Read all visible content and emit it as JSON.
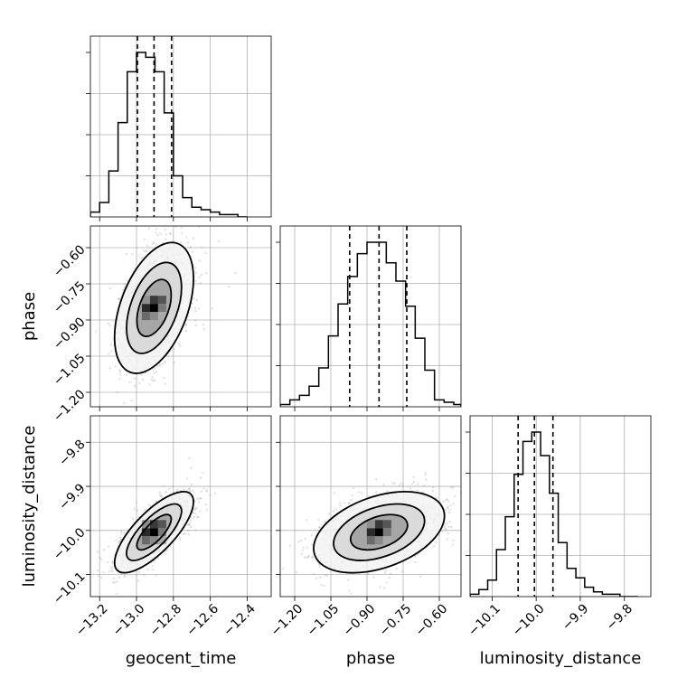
{
  "chart_data": {
    "type": "corner",
    "parameters": [
      "geocent_time",
      "phase",
      "luminosity_distance"
    ],
    "axis_labels": {
      "geocent_time": "geocent_time",
      "phase": "phase",
      "luminosity_distance": "luminosity_distance"
    },
    "ranges": {
      "geocent_time": [
        -13.25,
        -12.27
      ],
      "phase": [
        -1.26,
        -0.51
      ],
      "luminosity_distance": [
        -10.15,
        -9.74
      ]
    },
    "ticks": {
      "geocent_time": [
        -13.2,
        -13.0,
        -12.8,
        -12.6,
        -12.4
      ],
      "phase": [
        -1.2,
        -1.05,
        -0.9,
        -0.75,
        -0.6
      ],
      "luminosity_distance": [
        -10.1,
        -10.0,
        -9.9,
        -9.8
      ]
    },
    "tick_labels": {
      "geocent_time": [
        "−13.2",
        "−13.0",
        "−12.8",
        "−12.6",
        "−12.4"
      ],
      "phase": [
        "−1.20",
        "−1.05",
        "−0.90",
        "−0.75",
        "−0.60"
      ],
      "luminosity_distance": [
        "−10.1",
        "−10.0",
        "−9.9",
        "−9.8"
      ]
    },
    "quantiles": {
      "geocent_time": [
        -12.995,
        -12.905,
        -12.81
      ],
      "phase": [
        -0.972,
        -0.85,
        -0.735
      ],
      "luminosity_distance": [
        -10.041,
        -10.004,
        -9.962
      ]
    },
    "histograms": {
      "geocent_time": {
        "edges": [
          -13.25,
          -13.2,
          -13.15,
          -13.1,
          -13.05,
          -13.0,
          -12.95,
          -12.9,
          -12.85,
          -12.8,
          -12.75,
          -12.7,
          -12.65,
          -12.6,
          -12.55,
          -12.5,
          -12.45,
          -12.4
        ],
        "counts": [
          2,
          6,
          19,
          39,
          60,
          68,
          66,
          60,
          43,
          17,
          8,
          4,
          3,
          2,
          1,
          1,
          0
        ]
      },
      "phase": {
        "edges": [
          -1.26,
          -1.22,
          -1.18,
          -1.14,
          -1.1,
          -1.06,
          -1.02,
          -0.98,
          -0.94,
          -0.9,
          -0.86,
          -0.82,
          -0.78,
          -0.74,
          -0.7,
          -0.66,
          -0.62,
          -0.58,
          -0.54,
          -0.51
        ],
        "counts": [
          1,
          3,
          5,
          9,
          17,
          31,
          45,
          57,
          67,
          72,
          72,
          63,
          55,
          44,
          30,
          16,
          3,
          2,
          1
        ]
      },
      "luminosity_distance": {
        "edges": [
          -10.15,
          -10.13,
          -10.11,
          -10.09,
          -10.07,
          -10.05,
          -10.03,
          -10.01,
          -9.99,
          -9.97,
          -9.95,
          -9.93,
          -9.91,
          -9.89,
          -9.87,
          -9.85,
          -9.83,
          -9.81,
          -9.79,
          -9.77
        ],
        "counts": [
          1,
          3,
          7,
          20,
          34,
          52,
          66,
          70,
          60,
          44,
          23,
          12,
          8,
          4,
          2,
          1,
          1,
          0,
          0
        ]
      }
    },
    "joint": [
      {
        "x": "geocent_time",
        "y": "phase",
        "correlation": 0.45,
        "x_center": -12.905,
        "y_center": -0.85,
        "x_sigma": 0.093,
        "y_sigma": 0.118
      },
      {
        "x": "geocent_time",
        "y": "luminosity_distance",
        "correlation": 0.75,
        "x_center": -12.905,
        "y_center": -10.004,
        "x_sigma": 0.093,
        "y_sigma": 0.04
      },
      {
        "x": "phase",
        "y": "luminosity_distance",
        "correlation": 0.4,
        "x_center": -0.85,
        "y_center": -10.004,
        "x_sigma": 0.118,
        "y_sigma": 0.04
      }
    ],
    "contour_levels_sigma": [
      1.0,
      1.6,
      2.3
    ],
    "grid": true,
    "colors": {
      "lines": "#000000",
      "points": "#9a9a9a",
      "grid": "#b0b0b0"
    }
  }
}
